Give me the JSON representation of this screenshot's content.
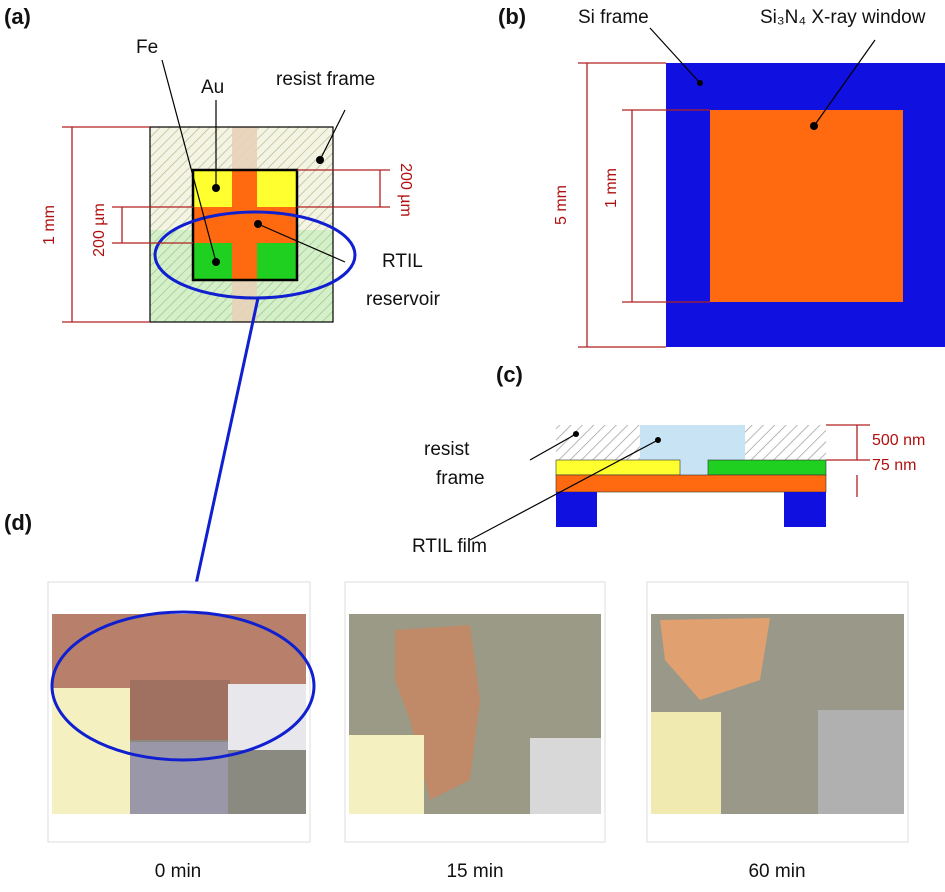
{
  "panel_a": {
    "label": "(a)",
    "fe": "Fe",
    "au": "Au",
    "resist_frame": "resist frame",
    "dim_outer": "1 mm",
    "dim_left": "200 µm",
    "dim_right": "200 µm",
    "rtil_1": "RTIL",
    "rtil_2": "reservoir"
  },
  "panel_b": {
    "label": "(b)",
    "si_frame": "Si frame",
    "window": "Si₃N₄ X-ray window",
    "dim_outer": "5 mm",
    "dim_inner": "1 mm"
  },
  "panel_c": {
    "label": "(c)",
    "resist_1": "resist",
    "resist_2": "frame",
    "dim_top": "500 nm",
    "dim_bottom": "75 nm",
    "rtil_film": "RTIL film"
  },
  "panel_d": {
    "label": "(d)",
    "times": [
      "0 min",
      "15 min",
      "60 min"
    ]
  }
}
